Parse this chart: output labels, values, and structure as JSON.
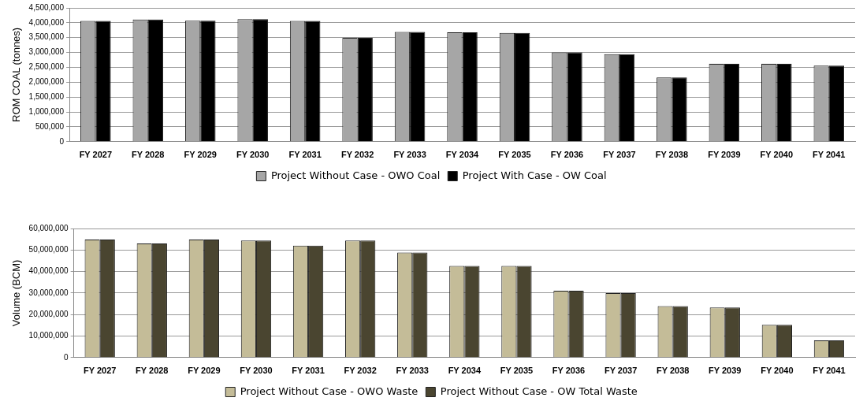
{
  "chart_data": [
    {
      "type": "bar",
      "ylabel": "ROM COAL (tonnes)",
      "categories": [
        "FY 2027",
        "FY 2028",
        "FY 2029",
        "FY 2030",
        "FY 2031",
        "FY 2032",
        "FY 2033",
        "FY 2034",
        "FY 2035",
        "FY 2036",
        "FY 2037",
        "FY 2038",
        "FY 2039",
        "FY 2040",
        "FY 2041"
      ],
      "series": [
        {
          "name": "Project Without Case - OWO Coal",
          "color": "#a6a6a6",
          "values": [
            4060000,
            4110000,
            4070000,
            4120000,
            4060000,
            3490000,
            3690000,
            3680000,
            3660000,
            3000000,
            2940000,
            2160000,
            2620000,
            2620000,
            2560000
          ]
        },
        {
          "name": "Project With Case - OW Coal",
          "color": "#000000",
          "values": [
            4060000,
            4110000,
            4070000,
            4120000,
            4060000,
            3490000,
            3690000,
            3680000,
            3660000,
            3000000,
            2940000,
            2160000,
            2620000,
            2620000,
            2560000
          ]
        }
      ],
      "ylim": [
        0,
        4500000
      ],
      "yticks": [
        {
          "value": 0,
          "label": "0"
        },
        {
          "value": 500000,
          "label": "500,000"
        },
        {
          "value": 1000000,
          "label": "1,000,000"
        },
        {
          "value": 1500000,
          "label": "1,500,000"
        },
        {
          "value": 2000000,
          "label": "2,000,000"
        },
        {
          "value": 2500000,
          "label": "2,500,000"
        },
        {
          "value": 3000000,
          "label": "3,000,000"
        },
        {
          "value": 3500000,
          "label": "3,500,000"
        },
        {
          "value": 4000000,
          "label": "4,000,000"
        },
        {
          "value": 4500000,
          "label": "4,500,000"
        }
      ],
      "grid": "y",
      "legend": "bottom"
    },
    {
      "type": "bar",
      "ylabel": "Volume (BCM)",
      "categories": [
        "FY 2027",
        "FY 2028",
        "FY 2029",
        "FY 2030",
        "FY 2031",
        "FY 2032",
        "FY 2033",
        "FY 2034",
        "FY 2035",
        "FY 2036",
        "FY 2037",
        "FY 2038",
        "FY 2039",
        "FY 2040",
        "FY 2041"
      ],
      "series": [
        {
          "name": "Project Without Case - OWO Waste",
          "color": "#c4bc98",
          "values": [
            54900000,
            53000000,
            54900000,
            54400000,
            52000000,
            54400000,
            48800000,
            42600000,
            42600000,
            31100000,
            30000000,
            23900000,
            23300000,
            15200000,
            8000000
          ]
        },
        {
          "name": "Project Without Case - OW Total Waste",
          "color": "#4a4530",
          "values": [
            54900000,
            53000000,
            54900000,
            54400000,
            52000000,
            54400000,
            48800000,
            42600000,
            42600000,
            31100000,
            30000000,
            23900000,
            23300000,
            15200000,
            8000000
          ]
        }
      ],
      "ylim": [
        0,
        60000000
      ],
      "yticks": [
        {
          "value": 0,
          "label": "0"
        },
        {
          "value": 10000000,
          "label": "10,000,000"
        },
        {
          "value": 20000000,
          "label": "20,000,000"
        },
        {
          "value": 30000000,
          "label": "30,000,000"
        },
        {
          "value": 40000000,
          "label": "40,000,000"
        },
        {
          "value": 50000000,
          "label": "50,000,000"
        },
        {
          "value": 60000000,
          "label": "60,000,000"
        }
      ],
      "grid": "y",
      "legend": "bottom"
    }
  ]
}
